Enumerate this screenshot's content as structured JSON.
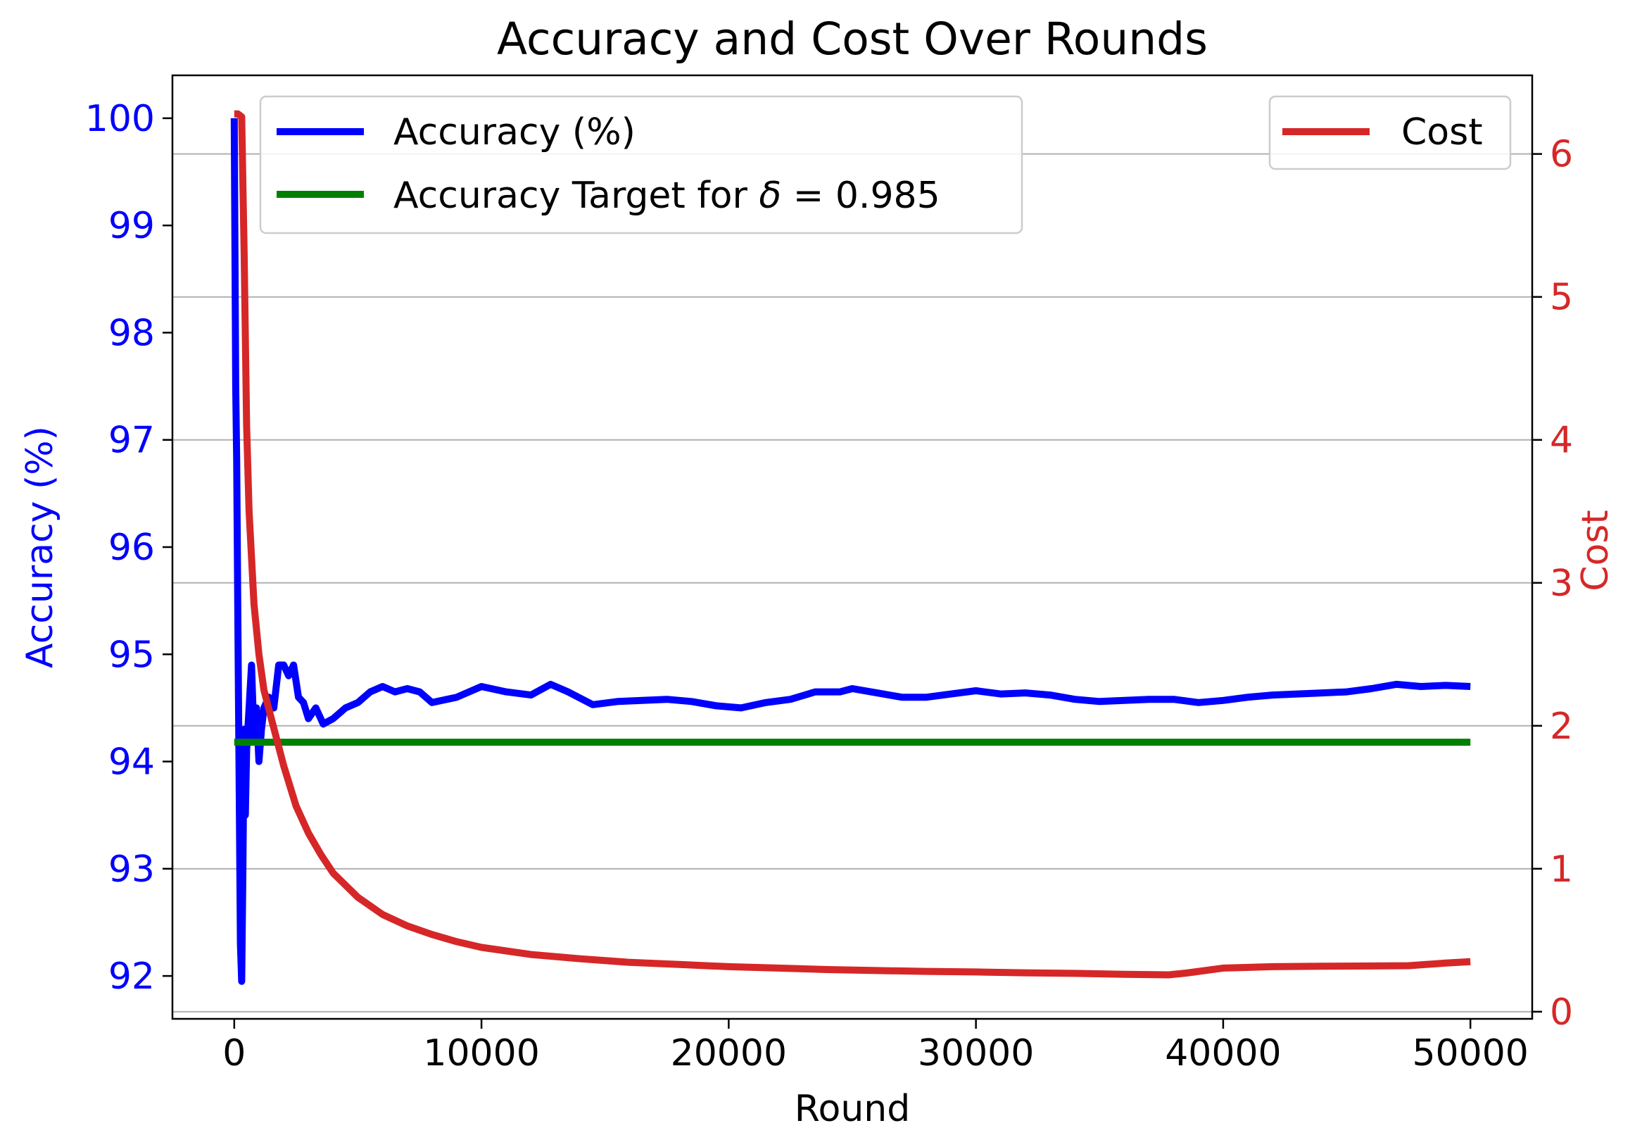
{
  "chart_data": {
    "type": "line",
    "title": "Accuracy and Cost Over Rounds",
    "xlabel": "Round",
    "ylabel_left": "Accuracy (%)",
    "ylabel_right": "Cost",
    "xlim": [
      -2500,
      52500
    ],
    "ylim_left": [
      91.6,
      100.4
    ],
    "ylim_right": [
      -0.05,
      6.55
    ],
    "x_ticks": [
      0,
      10000,
      20000,
      30000,
      40000,
      50000
    ],
    "x_tick_labels": [
      "0",
      "10000",
      "20000",
      "30000",
      "40000",
      "50000"
    ],
    "y_left_ticks": [
      92,
      93,
      94,
      95,
      96,
      97,
      98,
      99,
      100
    ],
    "y_left_tick_labels": [
      "92",
      "93",
      "94",
      "95",
      "96",
      "97",
      "98",
      "99",
      "100"
    ],
    "y_right_ticks": [
      0,
      1,
      2,
      3,
      4,
      5,
      6
    ],
    "y_right_tick_labels": [
      "0",
      "1",
      "2",
      "3",
      "4",
      "5",
      "6"
    ],
    "grid": "horizontal lines at right-axis ticks",
    "colors": {
      "accuracy": "#0000ff",
      "target": "#008000",
      "cost": "#d62728",
      "axis": "#000000",
      "grid": "#b0b0b0"
    },
    "series": [
      {
        "name": "Accuracy (%)",
        "axis": "left",
        "x": [
          0,
          60,
          100,
          150,
          200,
          250,
          300,
          350,
          400,
          450,
          500,
          600,
          700,
          800,
          900,
          1000,
          1100,
          1200,
          1400,
          1600,
          1800,
          2000,
          2200,
          2400,
          2600,
          2800,
          3000,
          3300,
          3600,
          4000,
          4500,
          5000,
          5500,
          6000,
          6500,
          7000,
          7500,
          8000,
          9000,
          10000,
          11000,
          12000,
          12800,
          13500,
          14500,
          15500,
          16500,
          17500,
          18500,
          19500,
          20500,
          21500,
          22500,
          23500,
          24500,
          25000,
          26000,
          27000,
          28000,
          29000,
          30000,
          31000,
          32000,
          33000,
          34000,
          35000,
          36000,
          37000,
          38000,
          39000,
          40000,
          41000,
          42000,
          43000,
          44000,
          45000,
          46000,
          47000,
          48000,
          49000,
          50000
        ],
        "values": [
          100.0,
          97.5,
          96.8,
          95.2,
          93.8,
          92.3,
          91.95,
          93.0,
          94.3,
          93.5,
          94.1,
          94.5,
          94.9,
          94.2,
          94.5,
          94.0,
          94.3,
          94.5,
          94.6,
          94.5,
          94.9,
          94.9,
          94.8,
          94.9,
          94.6,
          94.55,
          94.4,
          94.5,
          94.35,
          94.4,
          94.5,
          94.55,
          94.65,
          94.7,
          94.65,
          94.68,
          94.65,
          94.55,
          94.6,
          94.7,
          94.65,
          94.62,
          94.72,
          94.65,
          94.53,
          94.56,
          94.57,
          94.58,
          94.56,
          94.52,
          94.5,
          94.55,
          94.58,
          94.65,
          94.65,
          94.68,
          94.64,
          94.6,
          94.6,
          94.63,
          94.66,
          94.63,
          94.64,
          94.62,
          94.58,
          94.56,
          94.57,
          94.58,
          94.58,
          94.55,
          94.57,
          94.6,
          94.62,
          94.63,
          94.64,
          94.65,
          94.68,
          94.72,
          94.7,
          94.71,
          94.7
        ]
      },
      {
        "name": "Accuracy Target for δ = 0.985",
        "axis": "left",
        "x": [
          0,
          50000
        ],
        "values": [
          94.18,
          94.18
        ]
      },
      {
        "name": "Cost",
        "axis": "right",
        "x": [
          0,
          150,
          300,
          400,
          500,
          600,
          800,
          1000,
          1200,
          1500,
          2000,
          2500,
          3000,
          3500,
          4000,
          5000,
          6000,
          7000,
          8000,
          9000,
          10000,
          12000,
          14000,
          16000,
          18000,
          20000,
          22000,
          24000,
          26000,
          28000,
          30000,
          32000,
          34000,
          36000,
          37800,
          38500,
          40000,
          42000,
          44000,
          46000,
          47500,
          49000,
          50000
        ],
        "values": [
          6.28,
          6.28,
          6.26,
          5.3,
          4.1,
          3.5,
          2.85,
          2.5,
          2.25,
          2.05,
          1.72,
          1.44,
          1.25,
          1.1,
          0.97,
          0.8,
          0.68,
          0.6,
          0.54,
          0.49,
          0.45,
          0.4,
          0.37,
          0.345,
          0.33,
          0.315,
          0.305,
          0.295,
          0.288,
          0.282,
          0.278,
          0.272,
          0.268,
          0.262,
          0.258,
          0.27,
          0.305,
          0.315,
          0.318,
          0.32,
          0.322,
          0.34,
          0.35
        ]
      }
    ],
    "legend_left": {
      "placement": "upper-left",
      "entries": [
        "Accuracy (%)",
        "Accuracy Target for δ = 0.985"
      ]
    },
    "legend_right": {
      "placement": "upper-right",
      "entries": [
        "Cost"
      ]
    }
  }
}
